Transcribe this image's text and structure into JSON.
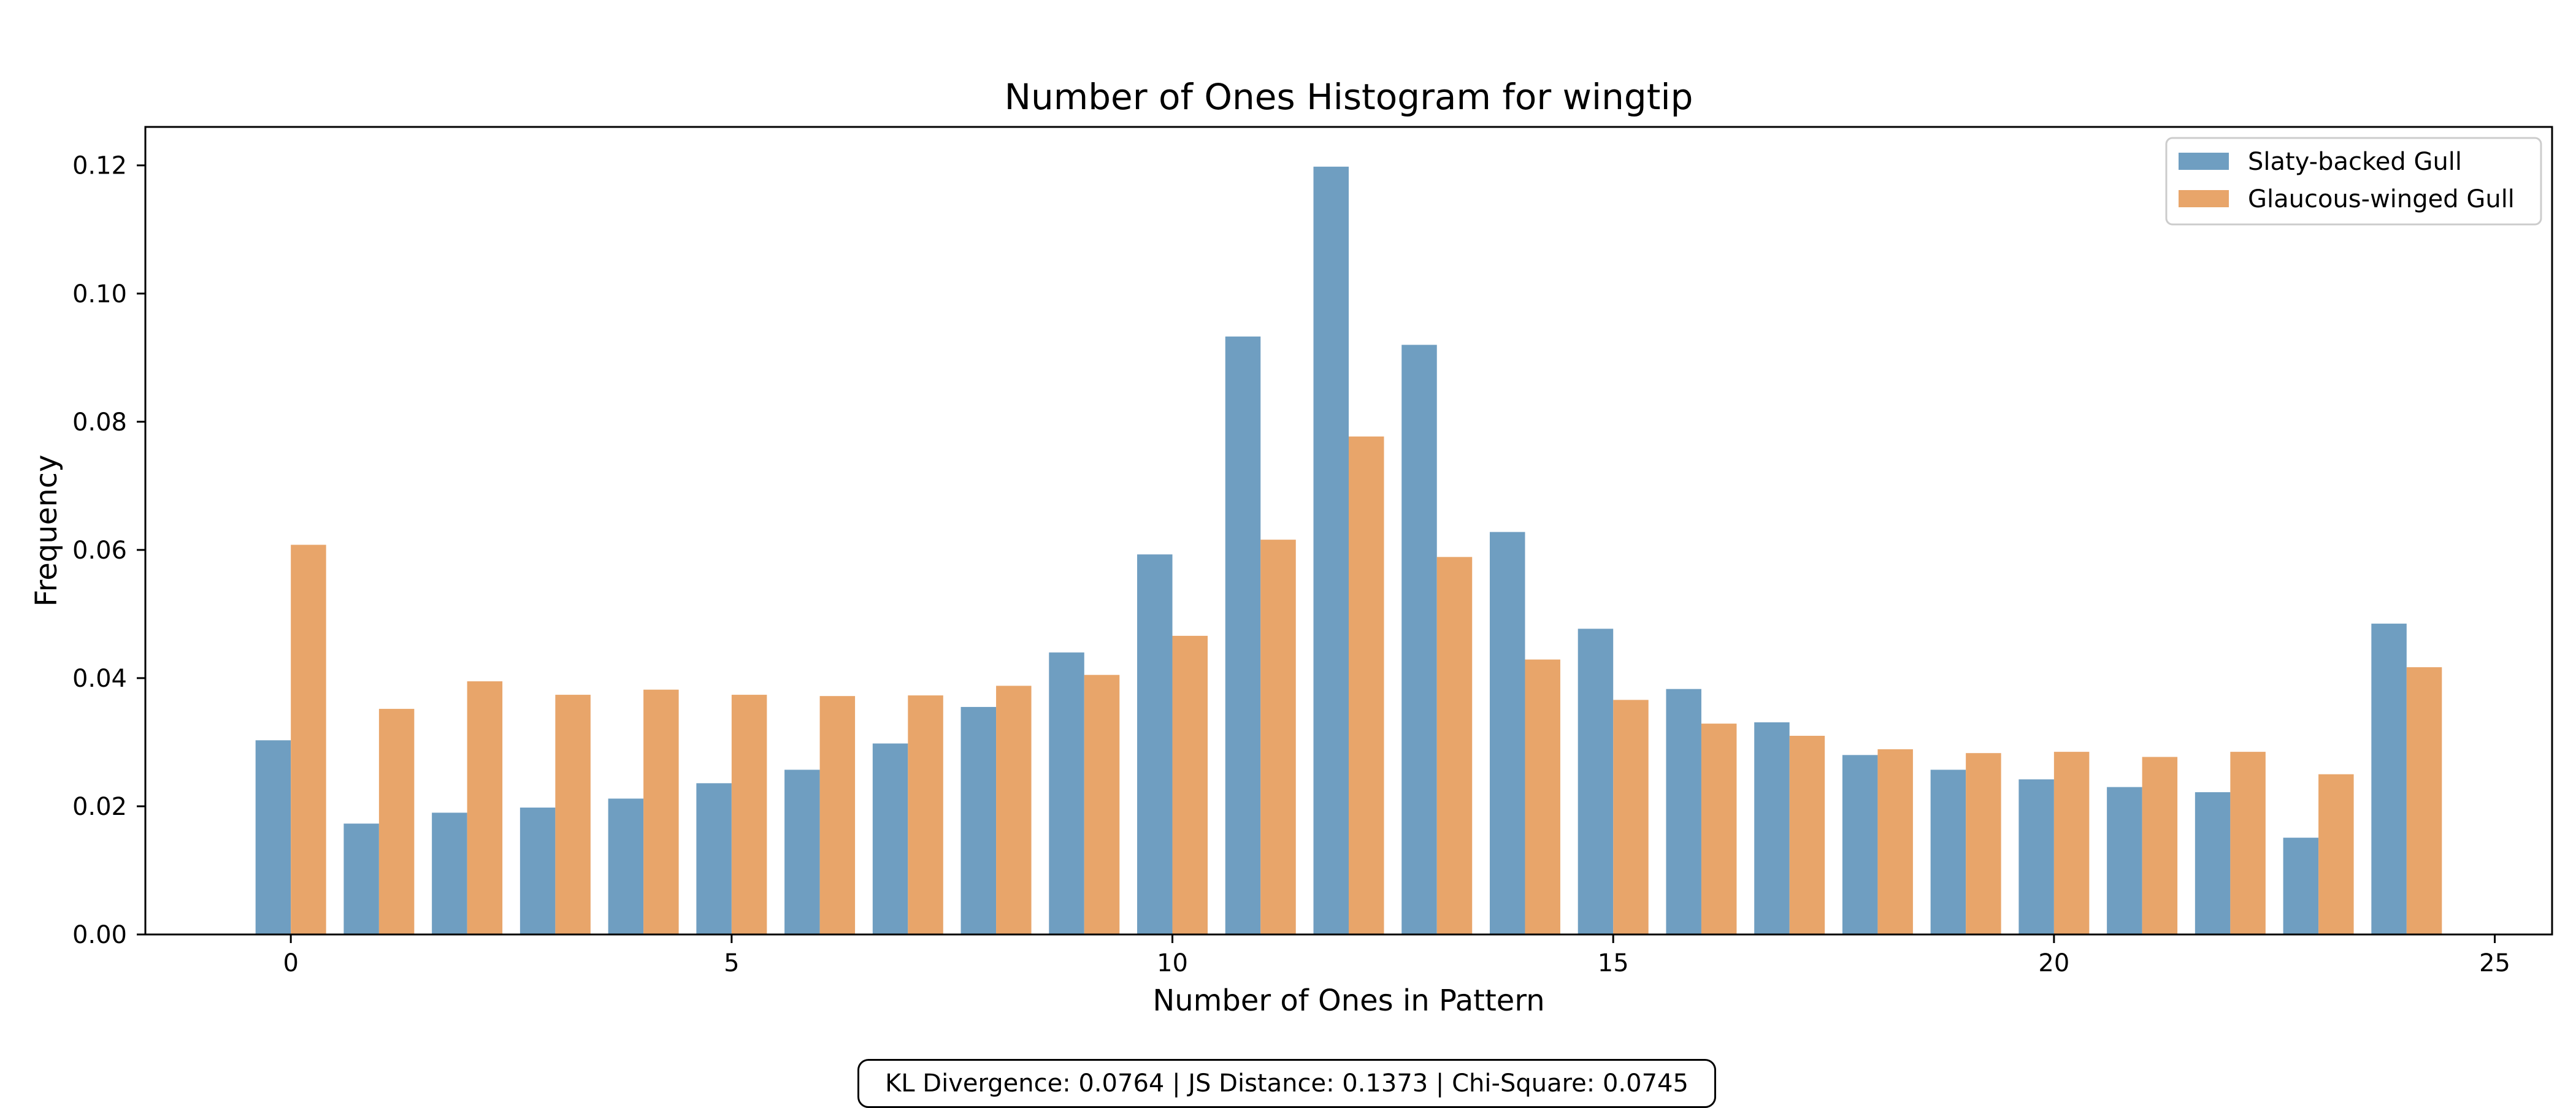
{
  "chart_data": {
    "type": "bar",
    "title": "Number of Ones Histogram for wingtip",
    "xlabel": "Number of Ones in Pattern",
    "ylabel": "Frequency",
    "xlim": [
      -1.65,
      25.65
    ],
    "ylim": [
      0,
      0.126
    ],
    "xticks": [
      0,
      5,
      10,
      15,
      20,
      25
    ],
    "yticks": [
      0.0,
      0.02,
      0.04,
      0.06,
      0.08,
      0.1,
      0.12
    ],
    "x": [
      0,
      1,
      2,
      3,
      4,
      5,
      6,
      7,
      8,
      9,
      10,
      11,
      12,
      13,
      14,
      15,
      16,
      17,
      18,
      19,
      20,
      21,
      22,
      23,
      24
    ],
    "series": [
      {
        "name": "Slaty-backed Gull",
        "color": "#6f9ec1",
        "values": [
          0.0303,
          0.0173,
          0.019,
          0.0198,
          0.0212,
          0.0236,
          0.0257,
          0.0298,
          0.0355,
          0.044,
          0.0593,
          0.0933,
          0.1198,
          0.092,
          0.0628,
          0.0477,
          0.0383,
          0.0331,
          0.028,
          0.0257,
          0.0242,
          0.023,
          0.0222,
          0.0151,
          0.0485
        ]
      },
      {
        "name": "Glaucous-winged Gull",
        "color": "#e8a56a",
        "values": [
          0.0608,
          0.0352,
          0.0395,
          0.0374,
          0.0382,
          0.0374,
          0.0372,
          0.0373,
          0.0388,
          0.0405,
          0.0466,
          0.0616,
          0.0777,
          0.0589,
          0.0429,
          0.0366,
          0.0329,
          0.031,
          0.0289,
          0.0283,
          0.0285,
          0.0277,
          0.0285,
          0.025,
          0.0417
        ]
      }
    ],
    "grid": false,
    "legend_position": "top-right"
  },
  "stats_text": "KL Divergence: 0.0764 | JS Distance: 0.1373 | Chi-Square: 0.0745"
}
